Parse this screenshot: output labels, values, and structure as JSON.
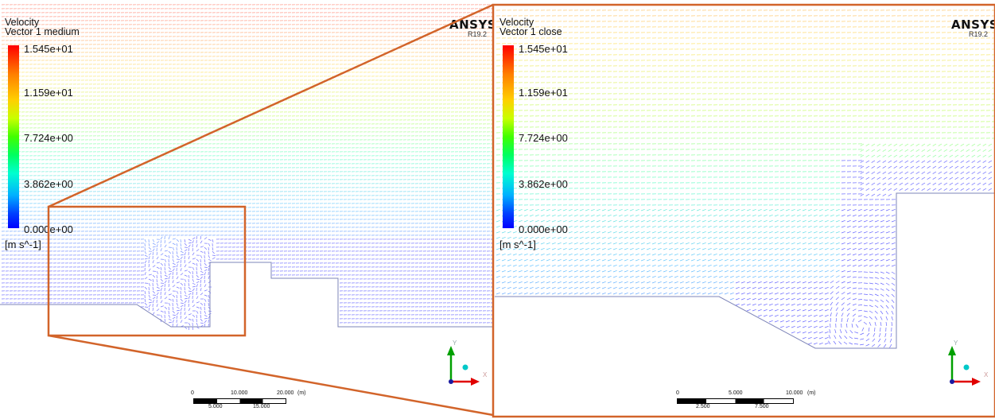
{
  "left_view": {
    "title": "Velocity",
    "subtitle": "Vector 1 medium",
    "brand": "ANSYS",
    "version": "R19.2",
    "legend_ticks": [
      "1.545e+01",
      "1.159e+01",
      "7.724e+00",
      "3.862e+00",
      "0.000e+00"
    ],
    "unit": "[m s^-1]",
    "axis_labels": {
      "y": "Y",
      "x": "X"
    },
    "scale_top_labels": [
      "0",
      "10.000",
      "20.000",
      "(m)"
    ],
    "scale_bottom_labels": [
      "5.000",
      "15.000"
    ]
  },
  "right_view": {
    "title": "Velocity",
    "subtitle": "Vector 1 close",
    "brand": "ANSYS",
    "version": "R19.2",
    "legend_ticks": [
      "1.545e+01",
      "1.159e+01",
      "7.724e+00",
      "3.862e+00",
      "0.000e+00"
    ],
    "unit": "[m s^-1]",
    "axis_labels": {
      "y": "Y",
      "x": "X"
    },
    "scale_top_labels": [
      "0",
      "5.000",
      "10.000",
      "(m)"
    ],
    "scale_bottom_labels": [
      "2.500",
      "7.500"
    ]
  },
  "colors": {
    "zoom_frame": "#d2642a",
    "geometry": "#7d84b8",
    "axis_y": "#00a000",
    "axis_x": "#e00000",
    "axis_z": "#00c8c8"
  }
}
